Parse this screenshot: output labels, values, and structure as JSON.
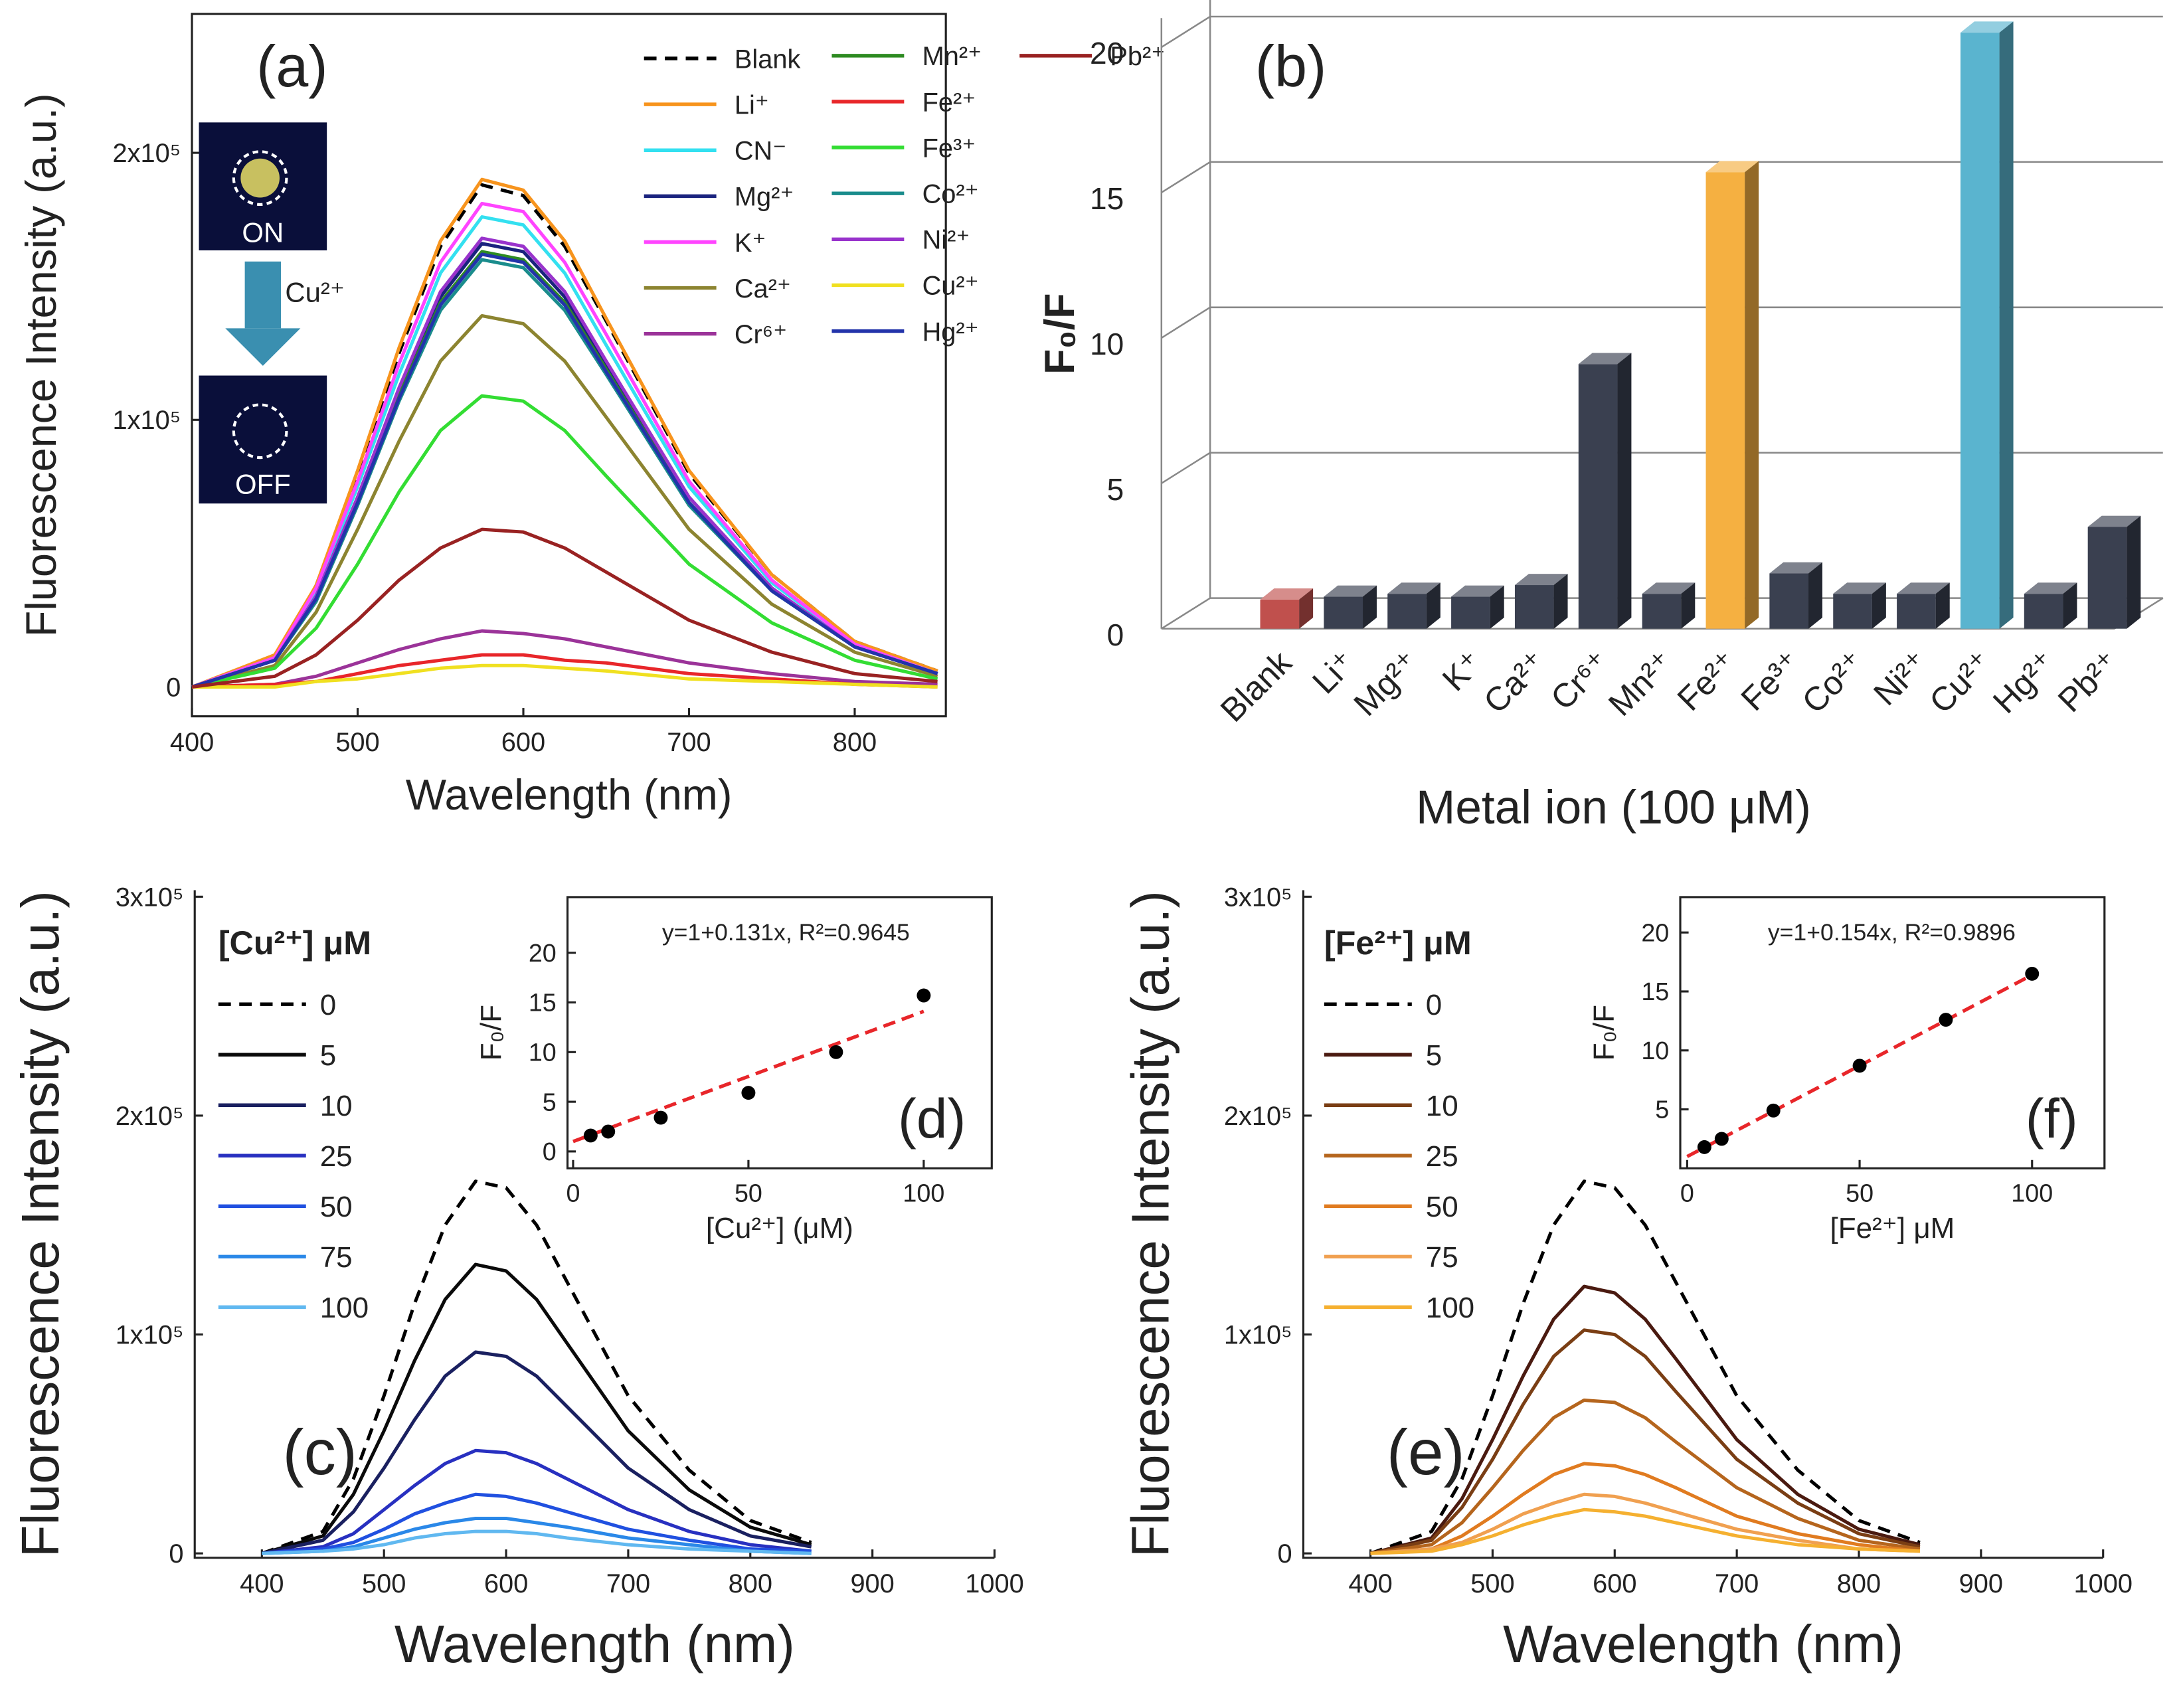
{
  "chart_data": [
    {
      "type": "line",
      "label": "(a)",
      "xlabel": "Wavelength (nm)",
      "ylabel": "Fluorescence Intensity (a.u.)",
      "x": [
        400,
        450,
        475,
        500,
        525,
        550,
        575,
        600,
        625,
        650,
        700,
        750,
        800,
        850
      ],
      "xlim": [
        400,
        855
      ],
      "xticks": [
        400,
        500,
        600,
        700,
        800
      ],
      "ylim": [
        -11000,
        252000
      ],
      "yticks": [
        0,
        {
          "value": 100000,
          "label": "1x10⁵"
        },
        {
          "value": 200000,
          "label": "2x10⁵"
        }
      ],
      "annotations": [
        "ON",
        "Cu²⁺",
        "OFF"
      ],
      "series": [
        {
          "name": "Blank",
          "color": "#000000",
          "dashed": true,
          "values": [
            0,
            11000,
            38000,
            80000,
            125000,
            165000,
            188000,
            184000,
            165000,
            137000,
            80000,
            42000,
            17000,
            6000
          ]
        },
        {
          "name": "Li⁺",
          "color": "#f7941d",
          "values": [
            0,
            12000,
            38000,
            81000,
            127000,
            167000,
            190000,
            186000,
            167000,
            138000,
            81000,
            42000,
            17000,
            6000
          ]
        },
        {
          "name": "CN⁻",
          "color": "#33e0f0",
          "values": [
            0,
            11000,
            36000,
            75000,
            117000,
            155000,
            176000,
            173000,
            155000,
            128000,
            75000,
            39000,
            16000,
            5000
          ]
        },
        {
          "name": "Mg²⁺",
          "color": "#1a237e",
          "values": [
            0,
            10000,
            34000,
            71000,
            111000,
            146000,
            166000,
            163000,
            146000,
            121000,
            71000,
            37000,
            15000,
            5000
          ]
        },
        {
          "name": "K⁺",
          "color": "#ff44ff",
          "values": [
            0,
            11000,
            37000,
            77000,
            121000,
            159000,
            181000,
            178000,
            159000,
            132000,
            77000,
            40000,
            16000,
            5000
          ]
        },
        {
          "name": "Ca²⁺",
          "color": "#8c8430",
          "values": [
            0,
            8000,
            28000,
            59000,
            92000,
            122000,
            139000,
            136000,
            122000,
            101000,
            59000,
            31000,
            13000,
            4000
          ]
        },
        {
          "name": "Cr⁶⁺",
          "color": "#9b3399",
          "values": [
            0,
            1000,
            4000,
            9000,
            14000,
            18000,
            21000,
            20000,
            18000,
            15000,
            9000,
            5000,
            2000,
            1000
          ]
        },
        {
          "name": "Mn²⁺",
          "color": "#2e8b22",
          "values": [
            0,
            10000,
            33000,
            69000,
            109000,
            144000,
            163000,
            160000,
            144000,
            119000,
            69000,
            36000,
            15000,
            5000
          ]
        },
        {
          "name": "Fe²⁺",
          "color": "#e8262a",
          "values": [
            0,
            1000,
            2000,
            5000,
            8000,
            10000,
            12000,
            12000,
            10000,
            9000,
            5000,
            3000,
            1000,
            0
          ]
        },
        {
          "name": "Fe³⁺",
          "color": "#33dd33",
          "values": [
            0,
            7000,
            22000,
            46000,
            73000,
            96000,
            109000,
            107000,
            96000,
            79000,
            46000,
            24000,
            10000,
            3000
          ]
        },
        {
          "name": "Co²⁺",
          "color": "#1a8c8c",
          "values": [
            0,
            10000,
            32000,
            68000,
            107000,
            141000,
            160000,
            157000,
            141000,
            117000,
            68000,
            36000,
            15000,
            5000
          ]
        },
        {
          "name": "Ni²⁺",
          "color": "#9933cc",
          "values": [
            0,
            10000,
            34000,
            71000,
            112000,
            148000,
            168000,
            165000,
            148000,
            122000,
            71000,
            37000,
            15000,
            5000
          ]
        },
        {
          "name": "Cu²⁺",
          "color": "#f0e020",
          "values": [
            0,
            0,
            2000,
            3000,
            5000,
            7000,
            8000,
            8000,
            7000,
            6000,
            3000,
            2000,
            1000,
            0
          ]
        },
        {
          "name": "Hg²⁺",
          "color": "#2233aa",
          "values": [
            0,
            10000,
            33000,
            69000,
            108000,
            143000,
            162000,
            159000,
            143000,
            118000,
            69000,
            36000,
            15000,
            5000
          ]
        },
        {
          "name": "Pb²⁺",
          "color": "#992222",
          "values": [
            0,
            4000,
            12000,
            25000,
            40000,
            52000,
            59000,
            58000,
            52000,
            43000,
            25000,
            13000,
            5000,
            2000
          ]
        }
      ]
    },
    {
      "type": "bar",
      "label": "(b)",
      "xlabel": "Metal ion (100 μM)",
      "ylabel": "F₀/F",
      "categories": [
        "Blank",
        "Li⁺",
        "Mg²⁺",
        "K⁺",
        "Ca²⁺",
        "Cr⁶⁺",
        "Mn²⁺",
        "Fe²⁺",
        "Fe³⁺",
        "Co²⁺",
        "Ni²⁺",
        "Cu²⁺",
        "Hg²⁺",
        "Pb²⁺"
      ],
      "values": [
        1,
        1.1,
        1.2,
        1.1,
        1.5,
        9.1,
        1.2,
        15.7,
        1.9,
        1.2,
        1.2,
        20.5,
        1.2,
        3.5
      ],
      "colors": [
        "#c0504d",
        "#3a4050",
        "#3a4050",
        "#3a4050",
        "#3a4050",
        "#3a4050",
        "#3a4050",
        "#f5b041",
        "#3a4050",
        "#3a4050",
        "#3a4050",
        "#5ab4cf",
        "#3a4050",
        "#3a4050"
      ],
      "ylim": [
        0,
        21
      ],
      "yticks": [
        0,
        5,
        10,
        15,
        20
      ],
      "grid": true
    },
    {
      "type": "line",
      "label": "(c)",
      "xlabel": "Wavelength (nm)",
      "ylabel": "Fluorescence Intensity (a.u.)",
      "legend_title": "[Cu²⁺] μM",
      "x": [
        400,
        450,
        475,
        500,
        525,
        550,
        575,
        600,
        625,
        650,
        700,
        750,
        800,
        850
      ],
      "xlim": [
        345,
        1000
      ],
      "xticks": [
        400,
        500,
        600,
        700,
        800,
        900,
        1000
      ],
      "ylim": [
        -2000,
        303000
      ],
      "yticks": [
        0,
        {
          "value": 100000,
          "label": "1x10⁵"
        },
        {
          "value": 200000,
          "label": "2x10⁵"
        },
        {
          "value": 300000,
          "label": "3x10⁵"
        }
      ],
      "series": [
        {
          "name": "0",
          "color": "#000000",
          "dashed": true,
          "values": [
            0,
            10000,
            34000,
            72000,
            114000,
            150000,
            170000,
            167000,
            150000,
            124000,
            72000,
            38000,
            15000,
            5000
          ]
        },
        {
          "name": "5",
          "color": "#0a0a0a",
          "values": [
            0,
            8000,
            27000,
            56000,
            88000,
            116000,
            132000,
            129000,
            116000,
            96000,
            56000,
            29000,
            12000,
            4000
          ]
        },
        {
          "name": "10",
          "color": "#1a2060",
          "values": [
            0,
            6000,
            19000,
            39000,
            61000,
            81000,
            92000,
            90000,
            81000,
            67000,
            39000,
            20000,
            8000,
            3000
          ]
        },
        {
          "name": "25",
          "color": "#2830c0",
          "values": [
            0,
            3000,
            9000,
            20000,
            31000,
            41000,
            47000,
            46000,
            41000,
            34000,
            20000,
            10000,
            4000,
            1000
          ]
        },
        {
          "name": "50",
          "color": "#2050e0",
          "values": [
            0,
            2000,
            5000,
            11000,
            18000,
            23000,
            27000,
            26000,
            23000,
            19000,
            11000,
            6000,
            2000,
            1000
          ]
        },
        {
          "name": "75",
          "color": "#2a88e8",
          "values": [
            0,
            1000,
            3000,
            7000,
            11000,
            14000,
            16000,
            16000,
            14000,
            12000,
            7000,
            4000,
            1000,
            0
          ]
        },
        {
          "name": "100",
          "color": "#60b8f0",
          "values": [
            0,
            1000,
            2000,
            4000,
            7000,
            9000,
            10000,
            10000,
            9000,
            7000,
            4000,
            2000,
            1000,
            0
          ]
        }
      ]
    },
    {
      "type": "scatter",
      "label": "(d)",
      "xlabel": "[Cu²⁺] (μM)",
      "ylabel": "F₀/F",
      "annotation": "y=1+0.131x, R²=0.9645",
      "x": [
        5,
        10,
        25,
        50,
        75,
        100
      ],
      "values": [
        1.6,
        2.0,
        3.4,
        5.9,
        10.0,
        15.7
      ],
      "color": "#000000",
      "fit": {
        "x": [
          0,
          100
        ],
        "values": [
          1,
          14.1
        ],
        "color": "#e8262a"
      },
      "xlim": [
        -1.6,
        119.4
      ],
      "xticks": [
        0,
        50,
        100
      ],
      "ylim": [
        -1.7,
        25.6
      ],
      "yticks": [
        0,
        5,
        10,
        15,
        20
      ]
    },
    {
      "type": "line",
      "label": "(e)",
      "xlabel": "Wavelength (nm)",
      "ylabel": "Fluorescence Intensity (a.u.)",
      "legend_title": "[Fe²⁺] μM",
      "x": [
        400,
        450,
        475,
        500,
        525,
        550,
        575,
        600,
        625,
        650,
        700,
        750,
        800,
        850
      ],
      "xlim": [
        345,
        1000
      ],
      "xticks": [
        400,
        500,
        600,
        700,
        800,
        900,
        1000
      ],
      "ylim": [
        -2000,
        303000
      ],
      "yticks": [
        0,
        {
          "value": 100000,
          "label": "1x10⁵"
        },
        {
          "value": 200000,
          "label": "2x10⁵"
        },
        {
          "value": 300000,
          "label": "3x10⁵"
        }
      ],
      "series": [
        {
          "name": "0",
          "color": "#000000",
          "dashed": true,
          "values": [
            0,
            10000,
            34000,
            72000,
            114000,
            150000,
            170000,
            167000,
            150000,
            124000,
            72000,
            38000,
            15000,
            5000
          ]
        },
        {
          "name": "5",
          "color": "#4a1a10",
          "values": [
            0,
            7000,
            25000,
            52000,
            81000,
            107000,
            122000,
            119000,
            107000,
            89000,
            52000,
            27000,
            11000,
            4000
          ]
        },
        {
          "name": "10",
          "color": "#7a3e14",
          "values": [
            0,
            6000,
            21000,
            43000,
            68000,
            90000,
            102000,
            100000,
            90000,
            74000,
            43000,
            23000,
            9000,
            3000
          ]
        },
        {
          "name": "25",
          "color": "#b5651d",
          "values": [
            0,
            4000,
            14000,
            30000,
            47000,
            62000,
            70000,
            69000,
            62000,
            51000,
            30000,
            16000,
            6000,
            2000
          ]
        },
        {
          "name": "50",
          "color": "#e07b20",
          "values": [
            0,
            2000,
            8000,
            17000,
            27000,
            36000,
            41000,
            40000,
            36000,
            30000,
            17000,
            9000,
            4000,
            1000
          ]
        },
        {
          "name": "75",
          "color": "#f0a050",
          "values": [
            0,
            2000,
            5000,
            11000,
            18000,
            23000,
            27000,
            26000,
            23000,
            19000,
            11000,
            6000,
            2000,
            1000
          ]
        },
        {
          "name": "100",
          "color": "#f5b030",
          "values": [
            0,
            1000,
            4000,
            8000,
            13000,
            17000,
            20000,
            19000,
            17000,
            14000,
            8000,
            4000,
            2000,
            1000
          ]
        }
      ]
    },
    {
      "type": "scatter",
      "label": "(f)",
      "xlabel": "[Fe²⁺] μM",
      "ylabel": "F₀/F",
      "annotation": "y=1+0.154x, R²=0.9896",
      "x": [
        5,
        10,
        25,
        50,
        75,
        100
      ],
      "values": [
        1.8,
        2.5,
        4.9,
        8.7,
        12.6,
        16.5
      ],
      "color": "#000000",
      "fit": {
        "x": [
          0,
          100
        ],
        "values": [
          1,
          16.4
        ],
        "color": "#e8262a"
      },
      "xlim": [
        -2,
        121
      ],
      "xticks": [
        0,
        50,
        100
      ],
      "ylim": [
        0,
        23
      ],
      "yticks": [
        5,
        10,
        15,
        20
      ]
    }
  ]
}
